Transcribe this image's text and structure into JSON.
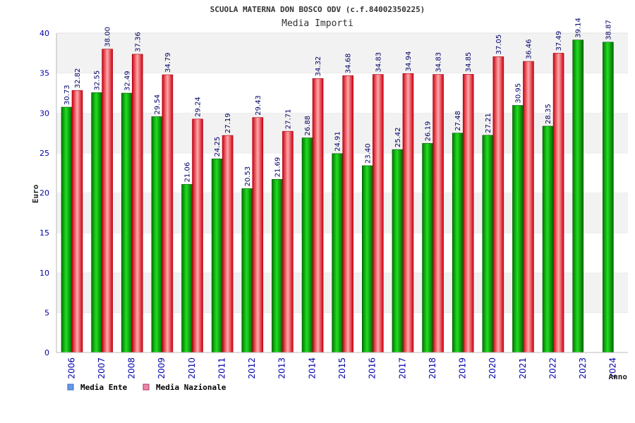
{
  "chart_data": {
    "type": "bar",
    "title": "SCUOLA MATERNA DON BOSCO ODV (c.f.84002350225)",
    "subtitle": "Media Importi",
    "xlabel": "Anno",
    "ylabel": "Euro",
    "ylim": [
      0,
      40
    ],
    "yticks": [
      "0",
      "5",
      "10",
      "15",
      "20",
      "25",
      "30",
      "35",
      "40"
    ],
    "grid": true,
    "legend_position": "bottom-left",
    "categories": [
      "2006",
      "2007",
      "2008",
      "2009",
      "2010",
      "2011",
      "2012",
      "2013",
      "2014",
      "2015",
      "2016",
      "2017",
      "2018",
      "2019",
      "2020",
      "2021",
      "2022",
      "2023",
      "2024"
    ],
    "series": [
      {
        "name": "Media Ente",
        "color": "#00aa00",
        "legend_color": "#6699ee",
        "values": [
          30.73,
          32.55,
          32.49,
          29.54,
          21.06,
          24.25,
          20.53,
          21.69,
          26.88,
          24.91,
          23.4,
          25.42,
          26.19,
          27.48,
          27.21,
          30.95,
          28.35,
          39.14,
          38.87
        ],
        "labels": [
          "30.73",
          "32.55",
          "32.49",
          "29.54",
          "21.06",
          "24.25",
          "20.53",
          "21.69",
          "26.88",
          "24.91",
          "23.40",
          "25.42",
          "26.19",
          "27.48",
          "27.21",
          "30.95",
          "28.35",
          "39.14",
          "38.87"
        ]
      },
      {
        "name": "Media Nazionale",
        "color": "#ee2233",
        "legend_color": "#ee88aa",
        "values": [
          32.82,
          38.0,
          37.36,
          34.79,
          29.24,
          27.19,
          29.43,
          27.71,
          34.32,
          34.68,
          34.83,
          34.94,
          34.83,
          34.85,
          37.05,
          36.46,
          37.49,
          null,
          null
        ],
        "labels": [
          "32.82",
          "38.00",
          "37.36",
          "34.79",
          "29.24",
          "27.19",
          "29.43",
          "27.71",
          "34.32",
          "34.68",
          "34.83",
          "34.94",
          "34.83",
          "34.85",
          "37.05",
          "36.46",
          "37.49",
          "",
          ""
        ]
      }
    ]
  }
}
